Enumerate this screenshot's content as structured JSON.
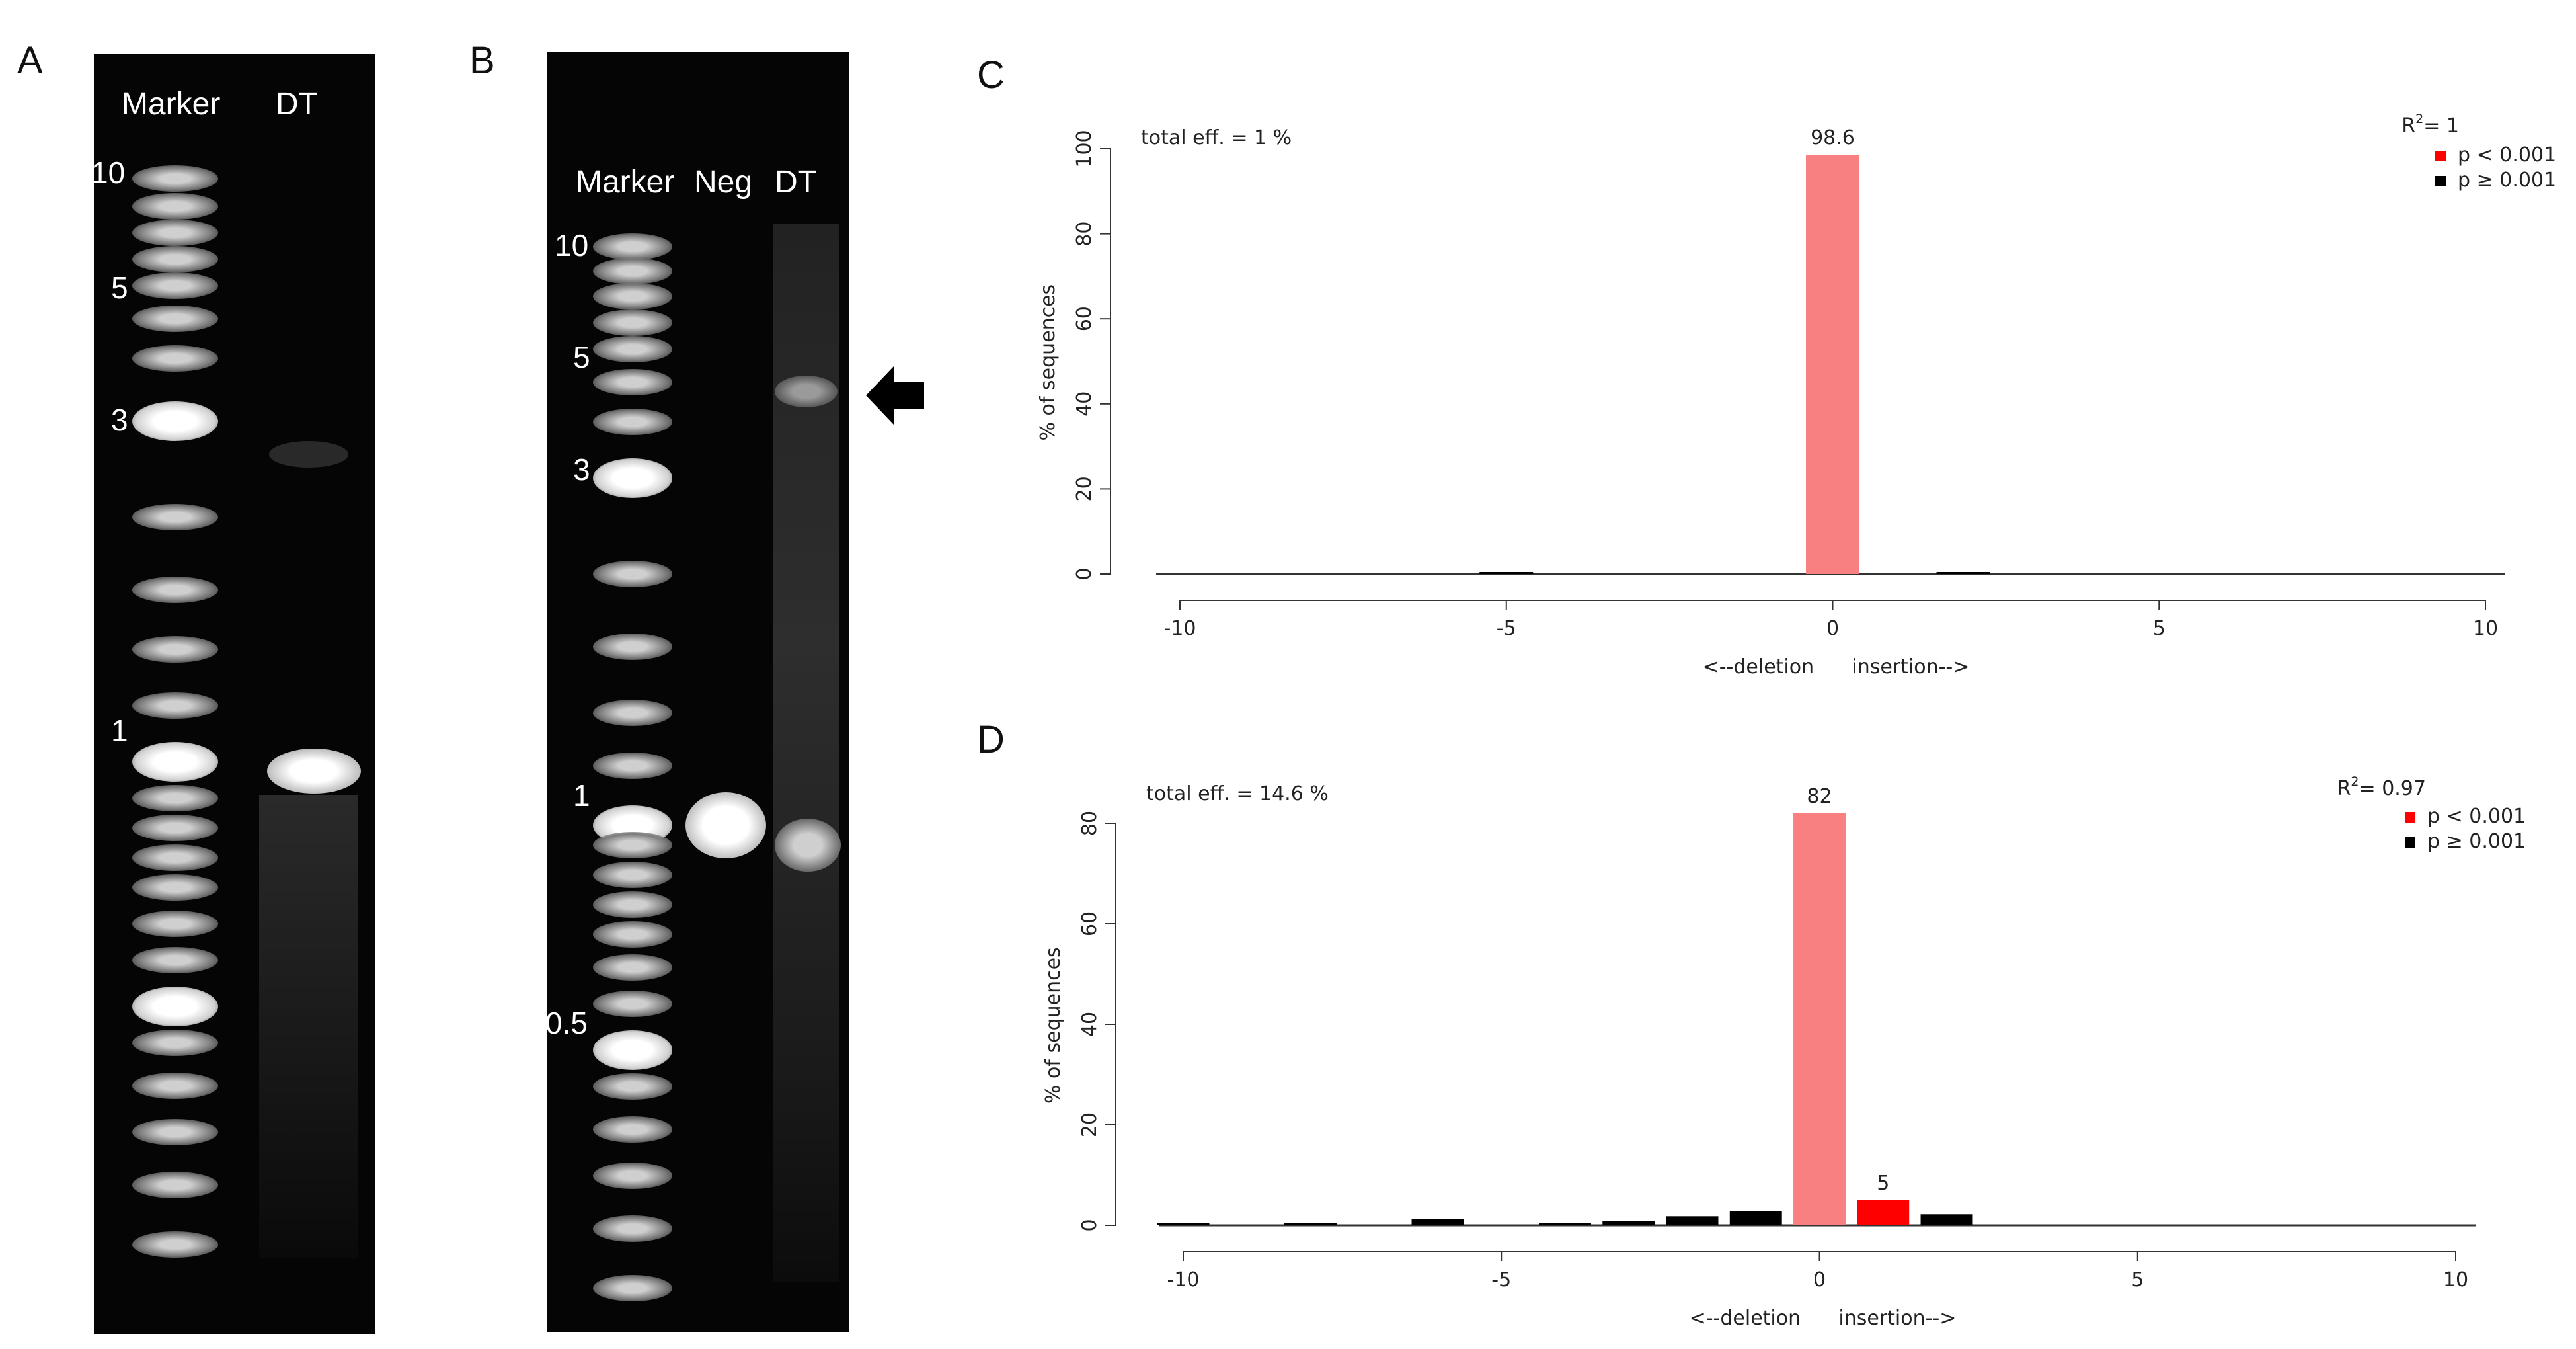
{
  "panels": {
    "a": {
      "letter": "A",
      "lanes": [
        "Marker",
        "DT"
      ],
      "ladder": [
        "10",
        "5",
        "3",
        "1"
      ]
    },
    "b": {
      "letter": "B",
      "lanes": [
        "Marker",
        "Neg",
        "DT"
      ],
      "ladder": [
        "10",
        "5",
        "3",
        "1",
        "0.5"
      ]
    },
    "c": {
      "letter": "C"
    },
    "d": {
      "letter": "D"
    }
  },
  "chart_data": [
    {
      "type": "bar",
      "panel": "C",
      "annotation": "total eff. = 1 %",
      "ylabel": "% of sequences",
      "xlabel": "<--deletion      insertion-->",
      "xlim": [
        -10,
        10
      ],
      "ylim": [
        0,
        100
      ],
      "xticks": [
        -10,
        -5,
        0,
        5,
        10
      ],
      "yticks": [
        0,
        20,
        40,
        60,
        80,
        100
      ],
      "r2_label": "R",
      "r2_value": "= 1",
      "legend": [
        {
          "label": "p < 0.001",
          "color": "#ff0000"
        },
        {
          "label": "p ≥ 0.001",
          "color": "#000000"
        }
      ],
      "bars": [
        {
          "x": -5,
          "value": 0.3,
          "color": "#000000"
        },
        {
          "x": 0,
          "value": 98.6,
          "color": "#f88080",
          "label": "98.6"
        },
        {
          "x": 2,
          "value": 0.4,
          "color": "#000000"
        }
      ]
    },
    {
      "type": "bar",
      "panel": "D",
      "annotation": "total eff. = 14.6 %",
      "ylabel": "% of sequences",
      "xlabel": "<--deletion      insertion-->",
      "xlim": [
        -10,
        10
      ],
      "ylim": [
        0,
        80
      ],
      "xticks": [
        -10,
        -5,
        0,
        5,
        10
      ],
      "yticks": [
        0,
        20,
        40,
        60,
        80
      ],
      "r2_label": "R",
      "r2_value": "= 0.97",
      "legend": [
        {
          "label": "p < 0.001",
          "color": "#ff0000"
        },
        {
          "label": "p ≥ 0.001",
          "color": "#000000"
        }
      ],
      "bars": [
        {
          "x": -10,
          "value": 0.1,
          "color": "#000000"
        },
        {
          "x": -8,
          "value": 0.3,
          "color": "#000000"
        },
        {
          "x": -6,
          "value": 1.2,
          "color": "#000000"
        },
        {
          "x": -4,
          "value": 0.4,
          "color": "#000000"
        },
        {
          "x": -3,
          "value": 0.8,
          "color": "#000000"
        },
        {
          "x": -2,
          "value": 1.8,
          "color": "#000000"
        },
        {
          "x": -1,
          "value": 2.8,
          "color": "#000000"
        },
        {
          "x": 0,
          "value": 82,
          "color": "#f88080",
          "label": "82"
        },
        {
          "x": 1,
          "value": 5,
          "color": "#ff0000",
          "label": "5"
        },
        {
          "x": 2,
          "value": 2.2,
          "color": "#000000"
        }
      ]
    }
  ]
}
